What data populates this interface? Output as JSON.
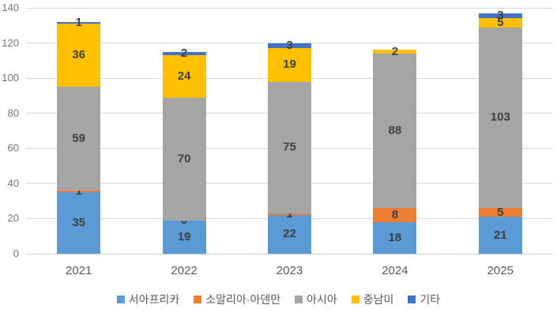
{
  "chart_data": {
    "type": "bar",
    "stacked": true,
    "title": "",
    "xlabel": "",
    "ylabel": "",
    "categories": [
      "2021",
      "2022",
      "2023",
      "2024",
      "2025"
    ],
    "series": [
      {
        "name": "서아프리카",
        "color": "#5B9BD5",
        "values": [
          35,
          19,
          22,
          18,
          21
        ],
        "labels": [
          "35",
          "19",
          "22",
          "18",
          "21"
        ]
      },
      {
        "name": "소말리아·아덴만",
        "color": "#ED7D31",
        "values": [
          1,
          0,
          1,
          8,
          5
        ],
        "labels": [
          "1",
          "0",
          "1",
          "8",
          "5"
        ]
      },
      {
        "name": "아시아",
        "color": "#A5A5A5",
        "values": [
          59,
          70,
          75,
          88,
          103
        ],
        "labels": [
          "59",
          "70",
          "75",
          "88",
          "103"
        ]
      },
      {
        "name": "중남미",
        "color": "#FFC000",
        "values": [
          36,
          24,
          19,
          2,
          5
        ],
        "labels": [
          "36",
          "24",
          "19",
          "2",
          "5"
        ]
      },
      {
        "name": "기타",
        "color": "#4472C4",
        "values": [
          1,
          2,
          3,
          0,
          3
        ],
        "labels": [
          "1",
          "2",
          "3",
          null,
          "3"
        ]
      }
    ],
    "totals": [
      132,
      115,
      120,
      116,
      137
    ],
    "ylim": [
      0,
      140
    ],
    "yticks": [
      0,
      20,
      40,
      60,
      80,
      100,
      120,
      140
    ],
    "grid": true,
    "legend_position": "bottom",
    "style": {
      "gridline_color": "#D9D9D9",
      "baseline_color": "#CFCFCF",
      "tick_text_color": "#767676",
      "category_text_color": "#595959",
      "data_label_color": "#3F3F3F",
      "legend_text_color": "#595959",
      "background": "#FFFFFF"
    }
  }
}
